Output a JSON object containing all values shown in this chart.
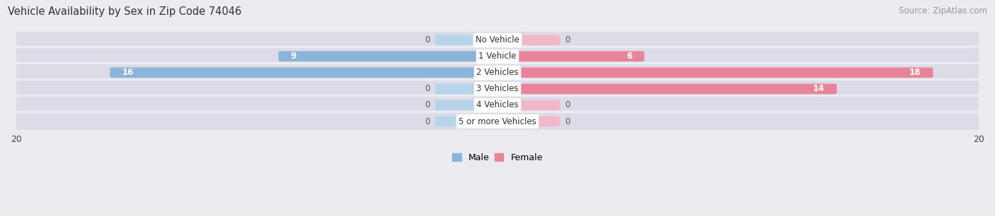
{
  "title": "Vehicle Availability by Sex in Zip Code 74046",
  "source": "Source: ZipAtlas.com",
  "categories": [
    "No Vehicle",
    "1 Vehicle",
    "2 Vehicles",
    "3 Vehicles",
    "4 Vehicles",
    "5 or more Vehicles"
  ],
  "male_values": [
    0,
    9,
    16,
    0,
    0,
    0
  ],
  "female_values": [
    0,
    6,
    18,
    14,
    0,
    0
  ],
  "male_color": "#8ab4d8",
  "female_color": "#e8849a",
  "male_stub_color": "#b8d4ea",
  "female_stub_color": "#f0b8c8",
  "male_label": "Male",
  "female_label": "Female",
  "xlim": 20,
  "background_color": "#ebebf0",
  "row_bg_color": "#dcdce8",
  "title_fontsize": 10.5,
  "source_fontsize": 8.5,
  "cat_fontsize": 8.5,
  "value_fontsize": 8.5,
  "axis_label_fontsize": 9,
  "legend_fontsize": 9
}
